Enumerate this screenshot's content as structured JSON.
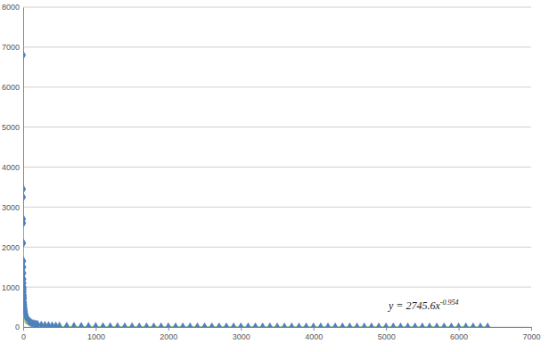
{
  "chart_data": {
    "type": "scatter",
    "annotation": {
      "text": "y = 2745.6x",
      "superscript": "-0.954"
    },
    "series": [
      {
        "type": "scatter",
        "color": "#4f81bd",
        "marker": "diamond",
        "x": [
          1,
          2,
          2,
          3,
          4,
          5,
          6,
          7,
          8,
          9,
          10,
          11,
          12,
          13,
          14,
          15,
          16,
          18,
          20,
          22,
          25,
          28,
          30,
          35,
          40,
          45,
          50,
          60,
          70,
          80,
          90,
          100,
          120,
          140,
          160,
          180,
          200,
          250,
          300,
          350,
          400,
          450,
          500,
          600,
          700,
          800,
          900,
          1000,
          1100,
          1200,
          1300,
          1400,
          1500,
          1600,
          1700,
          1800,
          1900,
          2000,
          2100,
          2200,
          2300,
          2400,
          2500,
          2600,
          2700,
          2800,
          2900,
          3000,
          3100,
          3200,
          3300,
          3400,
          3500,
          3600,
          3700,
          3800,
          3900,
          4000,
          4100,
          4200,
          4300,
          4400,
          4500,
          4600,
          4700,
          4800,
          4900,
          5000,
          5100,
          5200,
          5300,
          5400,
          5500,
          5600,
          5700,
          5800,
          5900,
          6000,
          6100,
          6200,
          6300,
          6400
        ],
        "values": [
          6800,
          3450,
          3250,
          2700,
          2600,
          2100,
          1650,
          1500,
          1350,
          1200,
          1100,
          1000,
          950,
          880,
          800,
          750,
          700,
          620,
          560,
          500,
          450,
          400,
          380,
          330,
          290,
          260,
          230,
          200,
          170,
          150,
          135,
          120,
          100,
          88,
          78,
          70,
          62,
          50,
          42,
          36,
          32,
          28,
          25,
          21,
          18,
          16,
          14,
          12,
          10,
          9,
          8,
          8,
          7,
          6,
          6,
          5,
          5,
          5,
          4,
          4,
          4,
          4,
          4,
          3,
          3,
          3,
          3,
          3,
          3,
          3,
          2,
          2,
          2,
          2,
          2,
          2,
          2,
          2,
          2,
          2,
          2,
          2,
          2,
          2,
          1,
          1,
          1,
          1,
          1,
          1,
          1,
          1,
          1,
          1,
          1,
          1,
          1,
          1,
          1,
          1,
          1,
          1
        ]
      },
      {
        "type": "line",
        "color": "#9bbb59",
        "x": [
          1,
          2,
          5,
          10,
          30,
          100,
          500,
          1000,
          3000,
          6400
        ],
        "values": [
          2746,
          1422,
          593,
          305,
          108,
          33,
          7,
          4,
          1,
          1
        ]
      }
    ],
    "xlim": [
      0,
      7000
    ],
    "xticks": [
      0,
      1000,
      2000,
      3000,
      4000,
      5000,
      6000,
      7000
    ],
    "ylim": [
      0,
      8000
    ],
    "yticks": [
      0,
      1000,
      2000,
      3000,
      4000,
      5000,
      6000,
      7000,
      8000
    ],
    "grid": true
  }
}
